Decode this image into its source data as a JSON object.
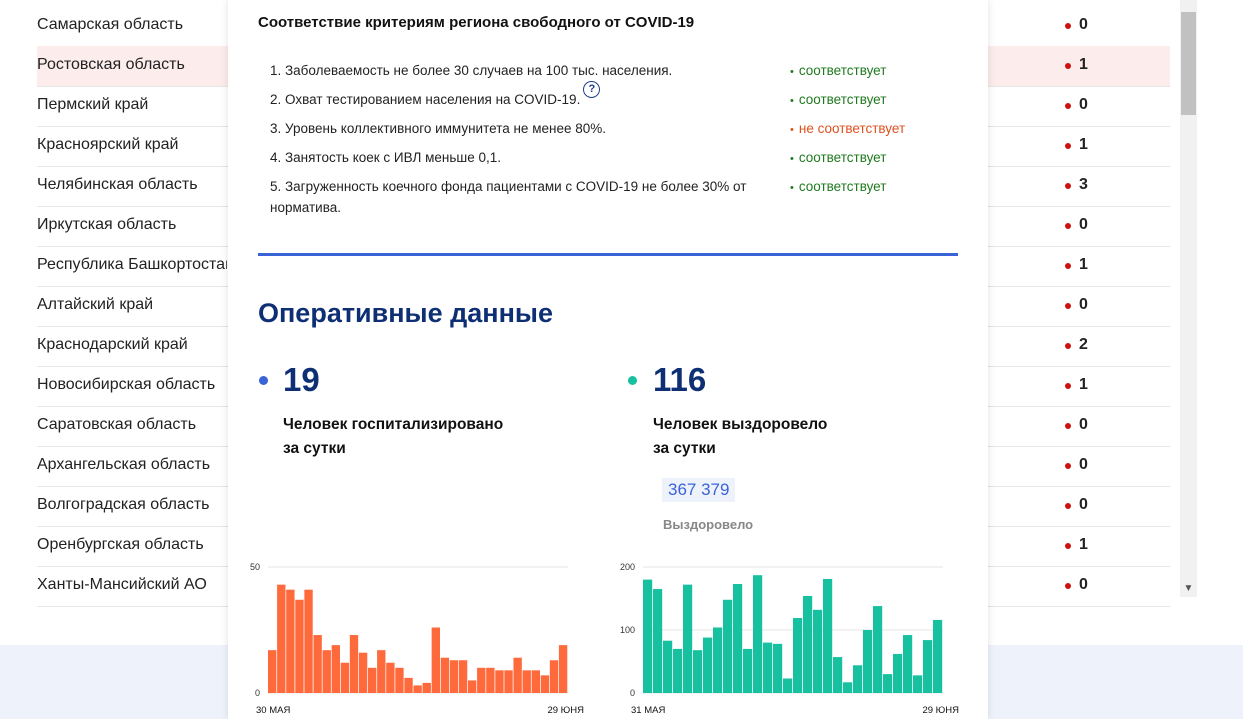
{
  "background_table": {
    "rows": [
      {
        "region": "Самарская область",
        "value": "0"
      },
      {
        "region": "Ростовская область",
        "value": "1"
      },
      {
        "region": "Пермский край",
        "value": "0"
      },
      {
        "region": "Красноярский край",
        "value": "1"
      },
      {
        "region": "Челябинская область",
        "value": "3"
      },
      {
        "region": "Иркутская область",
        "value": "0"
      },
      {
        "region": "Республика Башкортостан",
        "value": "1"
      },
      {
        "region": "Алтайский край",
        "value": "0"
      },
      {
        "region": "Краснодарский край",
        "value": "2"
      },
      {
        "region": "Новосибирская область",
        "value": "1"
      },
      {
        "region": "Саратовская область",
        "value": "0"
      },
      {
        "region": "Архангельская область",
        "value": "0"
      },
      {
        "region": "Волгоградская область",
        "value": "0"
      },
      {
        "region": "Оренбургская область",
        "value": "1"
      },
      {
        "region": "Ханты-Мансийский АО",
        "value": "0"
      }
    ],
    "highlighted_row": 1,
    "dot_color": "#cc1111"
  },
  "criteria": {
    "title": "Соответствие критериям региона свободного от COVID-19",
    "items": [
      {
        "text": "1. Заболеваемость не более 30 случаев на 100 тыс. населения.",
        "status": "соответствует",
        "ok": true
      },
      {
        "text": "2. Охват тестированием населения на COVID-19.",
        "status": "соответствует",
        "ok": true,
        "help_icon": "question-icon"
      },
      {
        "text": "3. Уровень коллективного иммунитета не менее 80%.",
        "status": "не соответствует",
        "ok": false
      },
      {
        "text": "4. Занятость коек с ИВЛ меньше 0,1.",
        "status": "соответствует",
        "ok": true
      },
      {
        "text": "5. Загруженность коечного фонда пациентами с COVID-19 не более 30% от норматива.",
        "status": "соответствует",
        "ok": true
      }
    ],
    "status_dot": "•",
    "help_symbol": "?",
    "colors": {
      "ok": "#1f7a1f",
      "bad": "#e0501e"
    }
  },
  "operational": {
    "title": "Оперативные данные",
    "hospitalized": {
      "value": "19",
      "label_line1": "Человек госпитализировано",
      "label_line2": "за сутки",
      "dot_color": "#3b63d8"
    },
    "recovered": {
      "value": "116",
      "label_line1": "Человек выздоровело",
      "label_line2": "за сутки",
      "dot_color": "#17c1a0",
      "total": "367 379",
      "total_label": "Выздоровело"
    }
  },
  "chart_data": [
    {
      "type": "bar",
      "color": "#ff6a3d",
      "ylim": [
        0,
        50
      ],
      "yticks": [
        "0",
        "50"
      ],
      "x_start_label": "30 МАЯ",
      "x_end_label": "29 ЮНЯ",
      "values": [
        17,
        43,
        41,
        37,
        41,
        23,
        17,
        19,
        12,
        23,
        16,
        10,
        17,
        12,
        10,
        6,
        3,
        4,
        26,
        14,
        13,
        13,
        5,
        10,
        10,
        9,
        9,
        14,
        9,
        9,
        7,
        13,
        19
      ]
    },
    {
      "type": "bar",
      "color": "#17c1a0",
      "ylim": [
        0,
        200
      ],
      "yticks": [
        "0",
        "100",
        "200"
      ],
      "x_start_label": "31 МАЯ",
      "x_end_label": "29 ЮНЯ",
      "values": [
        180,
        165,
        83,
        70,
        172,
        68,
        88,
        104,
        148,
        173,
        70,
        187,
        80,
        78,
        23,
        119,
        154,
        132,
        181,
        57,
        17,
        44,
        100,
        138,
        30,
        62,
        92,
        28,
        84,
        116
      ]
    }
  ]
}
